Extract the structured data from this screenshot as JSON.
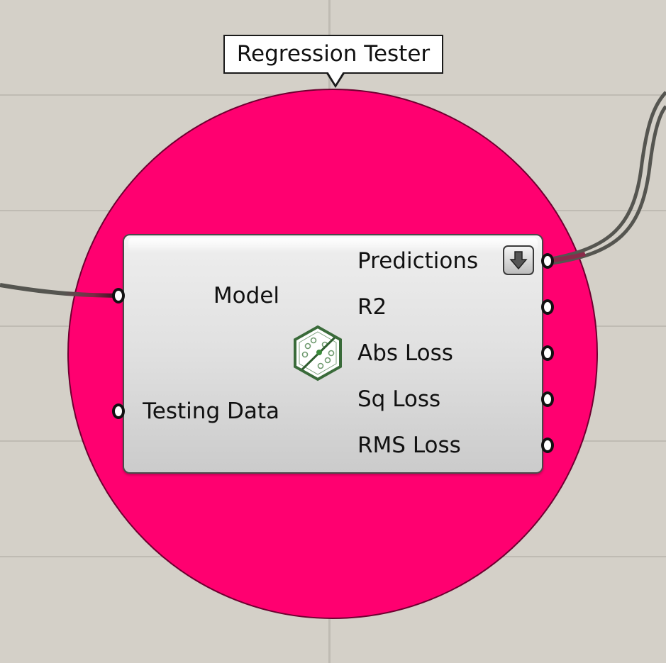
{
  "tooltip": {
    "title": "Regression Tester"
  },
  "component": {
    "icon": "regression-tester-icon",
    "inputs": [
      {
        "label": "Model"
      },
      {
        "label": "Testing Data"
      }
    ],
    "outputs": [
      {
        "label": "Predictions"
      },
      {
        "label": "R2"
      },
      {
        "label": "Abs Loss"
      },
      {
        "label": "Sq Loss"
      },
      {
        "label": "RMS Loss"
      }
    ],
    "predictions_menu_icon": "arrow-down-icon"
  },
  "colors": {
    "canvas": "#d4d0c8",
    "gridline": "#bfbbb3",
    "highlight_circle": "#ff0070",
    "wire_dark": "#555550",
    "wire_data": "#8fc46a",
    "icon_green": "#3a6b3a"
  }
}
